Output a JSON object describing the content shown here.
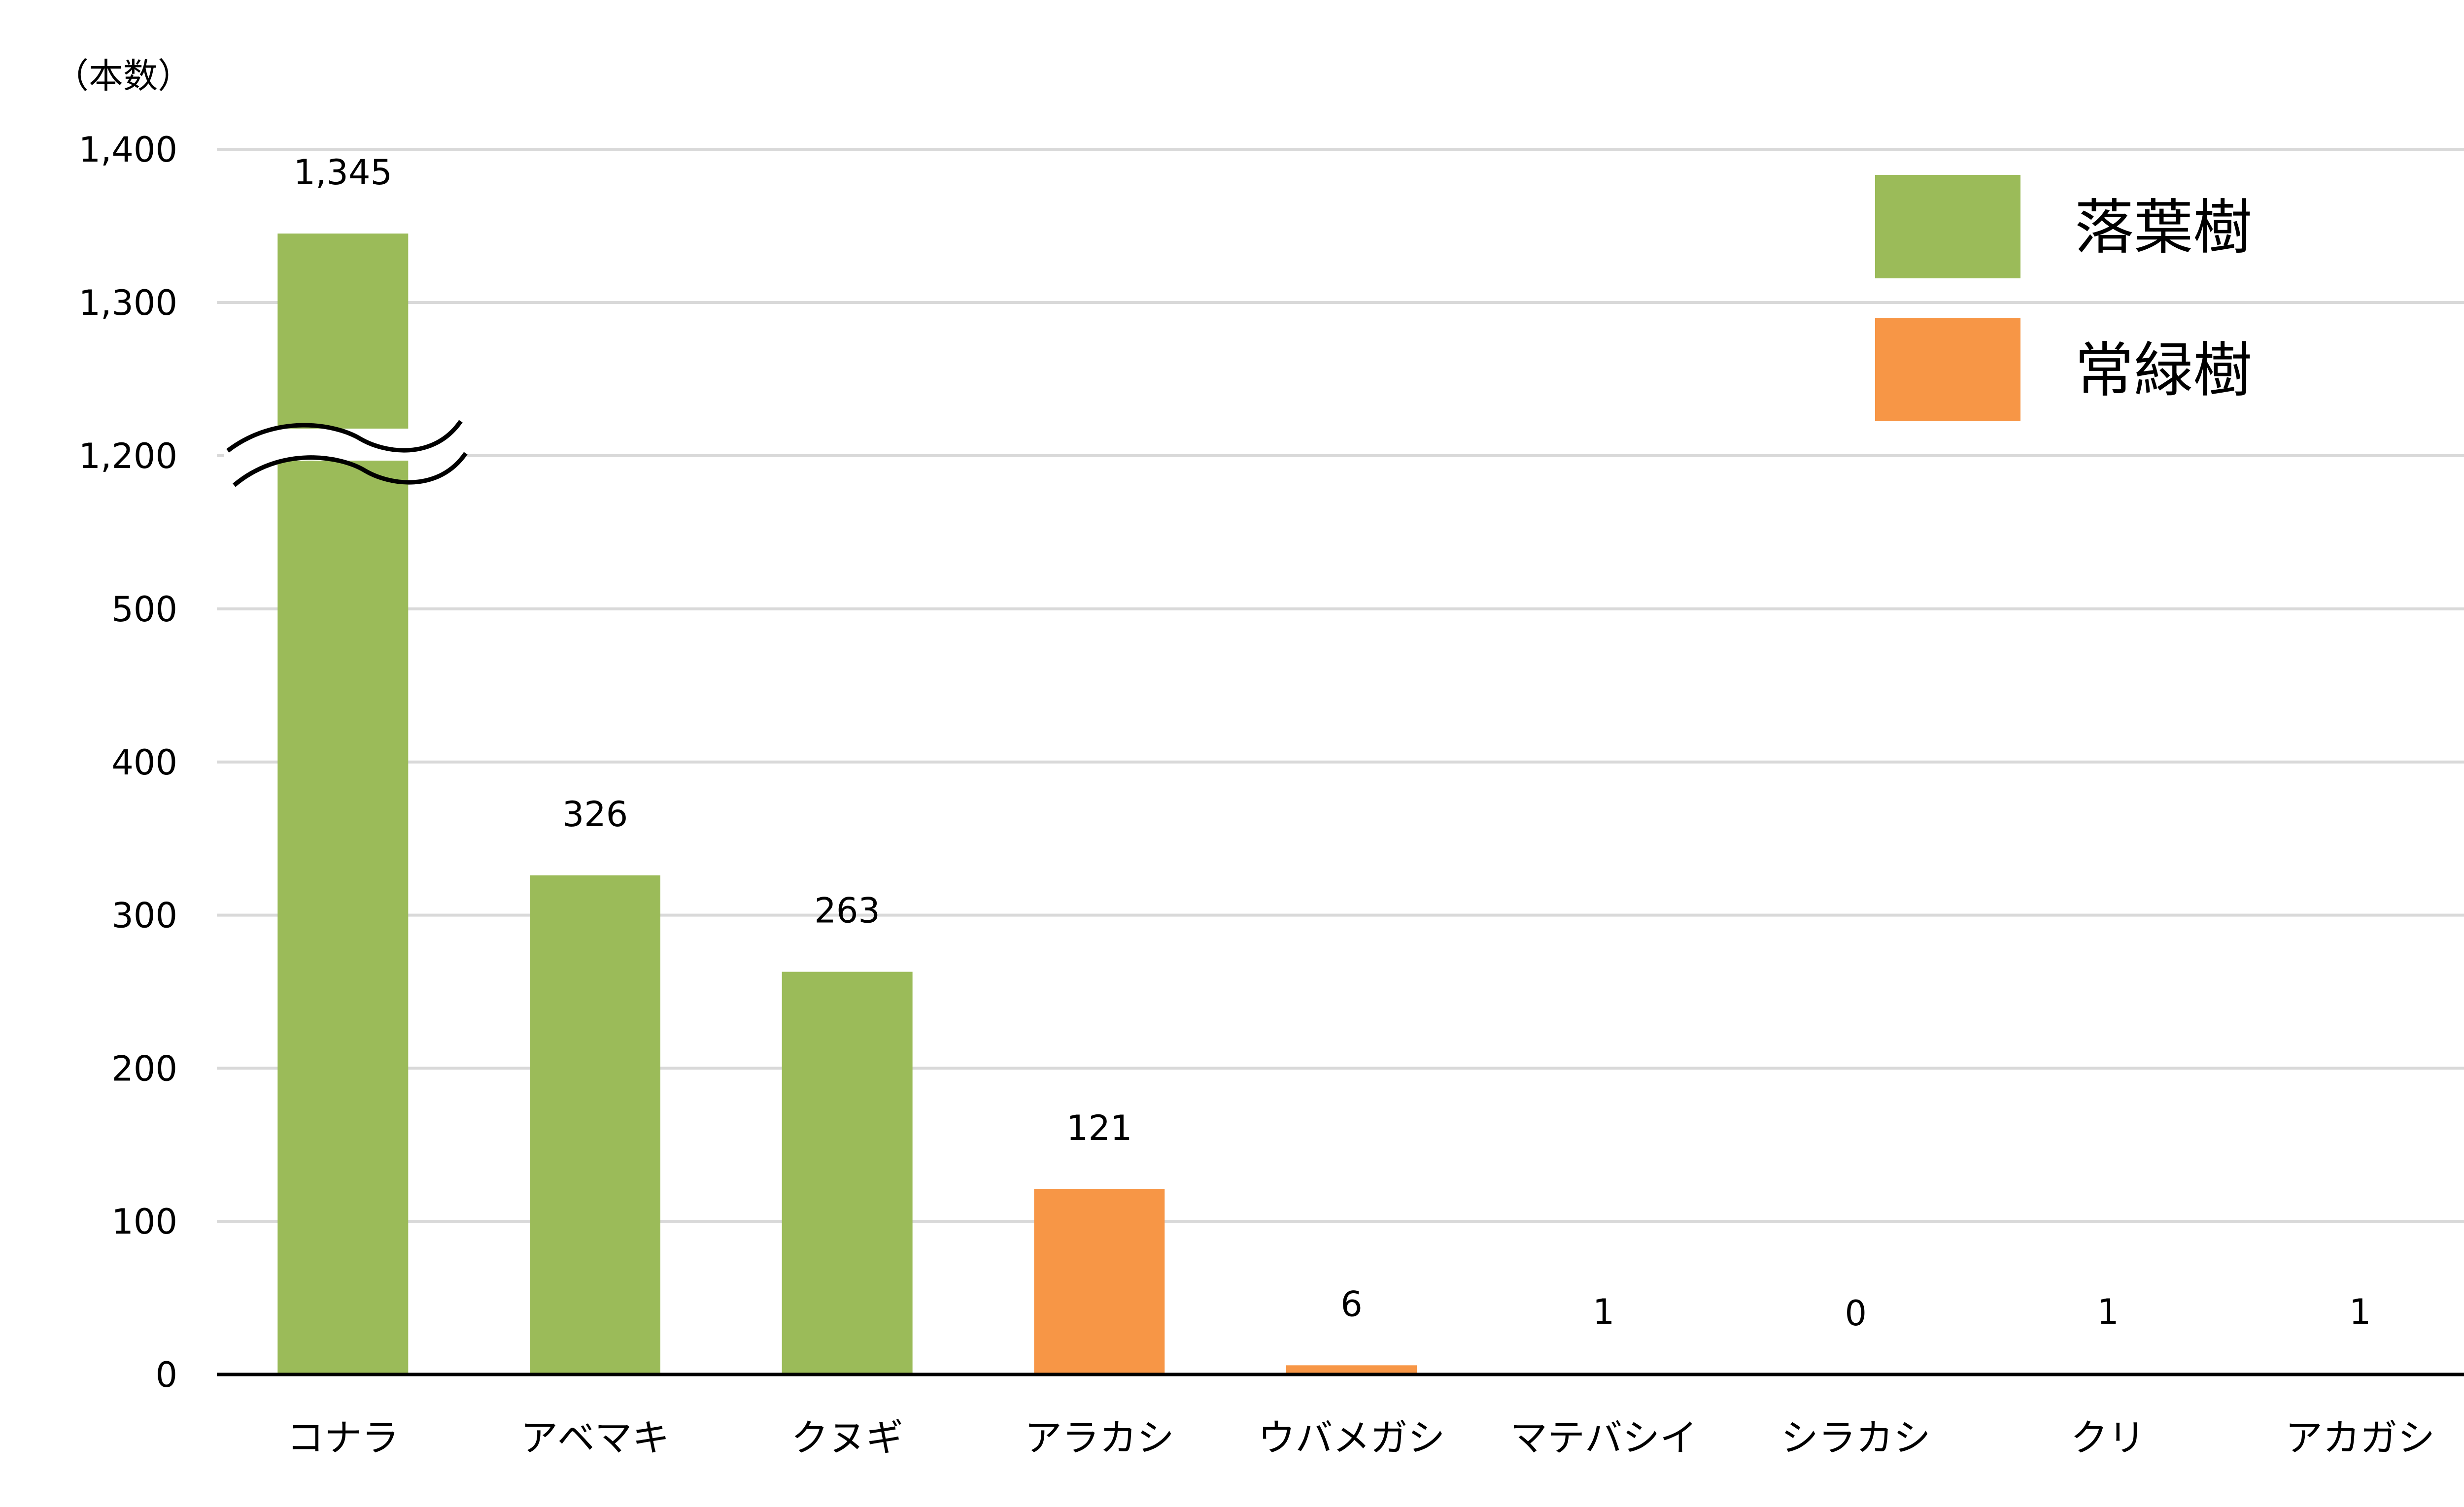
{
  "chart_data": {
    "type": "bar",
    "unit_label": "（本数）",
    "title": "",
    "xlabel": "",
    "ylabel": "",
    "categories": [
      "コナラ",
      "アベマキ",
      "クヌギ",
      "アラカシ",
      "ウバメガシ",
      "マテバシイ",
      "シラカシ",
      "クリ",
      "アカガシ"
    ],
    "values": [
      1345,
      326,
      263,
      121,
      6,
      1,
      0,
      1,
      1
    ],
    "value_labels": [
      "1,345",
      "326",
      "263",
      "121",
      "6",
      "1",
      "0",
      "1",
      "1"
    ],
    "groups": [
      "落葉樹",
      "落葉樹",
      "落葉樹",
      "常緑樹",
      "常緑樹",
      "常緑樹",
      "常緑樹",
      "落葉樹",
      "常緑樹"
    ],
    "y_ticks": [
      0,
      100,
      200,
      300,
      400,
      500,
      1200,
      1300,
      1400
    ],
    "y_tick_labels": [
      "0",
      "100",
      "200",
      "300",
      "400",
      "500",
      "1,200",
      "1,300",
      "1,400"
    ],
    "axis_break": [
      500,
      1200
    ],
    "ylim": [
      0,
      1400
    ],
    "grid": true,
    "legend": {
      "placement": "top-right",
      "entries": [
        {
          "label": "落葉樹",
          "color": "#9BBB59"
        },
        {
          "label": "常緑樹",
          "color": "#F79646"
        }
      ]
    }
  }
}
